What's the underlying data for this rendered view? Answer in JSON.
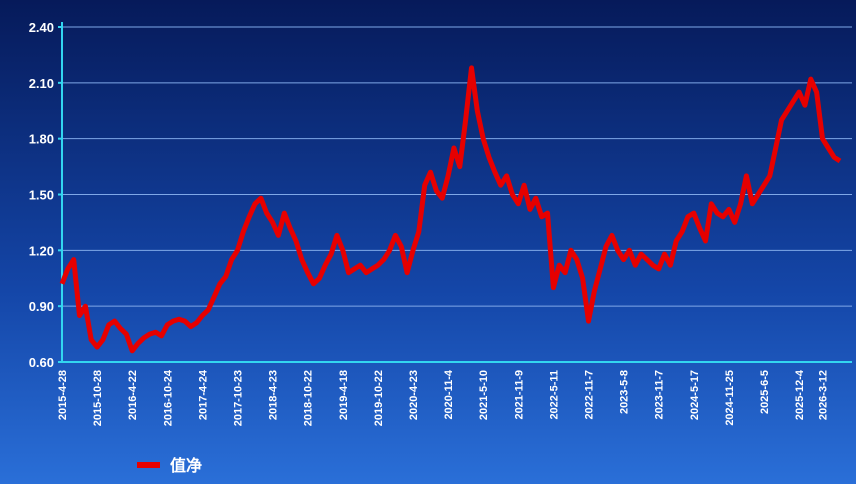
{
  "chart_data": {
    "type": "line",
    "categories": [
      "2015-4-28",
      null,
      null,
      null,
      null,
      null,
      "2015-10-28",
      null,
      null,
      null,
      null,
      null,
      "2016-4-22",
      null,
      null,
      null,
      null,
      null,
      "2016-10-24",
      null,
      null,
      null,
      null,
      null,
      "2017-4-24",
      null,
      null,
      null,
      null,
      null,
      "2017-10-23",
      null,
      null,
      null,
      null,
      null,
      "2018-4-23",
      null,
      null,
      null,
      null,
      null,
      "2018-10-22",
      null,
      null,
      null,
      null,
      null,
      "2019-4-18",
      null,
      null,
      null,
      null,
      null,
      "2019-10-22",
      null,
      null,
      null,
      null,
      null,
      "2020-4-23",
      null,
      null,
      null,
      null,
      null,
      "2020-11-4",
      null,
      null,
      null,
      null,
      null,
      "2021-5-10",
      null,
      null,
      null,
      null,
      null,
      "2021-11-9",
      null,
      null,
      null,
      null,
      null,
      "2022-5-11",
      null,
      null,
      null,
      null,
      null,
      "2022-11-7",
      null,
      null,
      null,
      null,
      null,
      "2023-5-8",
      null,
      null,
      null,
      null,
      null,
      "2023-11-7",
      null,
      null,
      null,
      null,
      null,
      "2024-5-17",
      null,
      null,
      null,
      null,
      null,
      "2024-11-25",
      null,
      null,
      null,
      null,
      null,
      "2025-6-5",
      null,
      null,
      null,
      null,
      null,
      "2025-12-4",
      null,
      null,
      null,
      "2026-3-12",
      null,
      null,
      null
    ],
    "series": [
      {
        "name": "值净",
        "color": "#e60000",
        "values": [
          1.02,
          1.1,
          1.15,
          0.85,
          0.9,
          0.72,
          0.68,
          0.72,
          0.8,
          0.82,
          0.78,
          0.75,
          0.66,
          0.7,
          0.73,
          0.75,
          0.76,
          0.74,
          0.8,
          0.82,
          0.83,
          0.82,
          0.79,
          0.81,
          0.85,
          0.88,
          0.95,
          1.02,
          1.06,
          1.15,
          1.2,
          1.3,
          1.38,
          1.45,
          1.48,
          1.4,
          1.35,
          1.28,
          1.4,
          1.32,
          1.25,
          1.15,
          1.08,
          1.02,
          1.05,
          1.12,
          1.18,
          1.28,
          1.2,
          1.08,
          1.1,
          1.12,
          1.08,
          1.1,
          1.12,
          1.15,
          1.2,
          1.28,
          1.22,
          1.08,
          1.2,
          1.3,
          1.55,
          1.62,
          1.52,
          1.48,
          1.6,
          1.75,
          1.65,
          1.9,
          2.18,
          1.95,
          1.8,
          1.7,
          1.62,
          1.55,
          1.6,
          1.5,
          1.45,
          1.55,
          1.42,
          1.48,
          1.38,
          1.4,
          1.0,
          1.12,
          1.08,
          1.2,
          1.15,
          1.05,
          0.82,
          0.98,
          1.1,
          1.22,
          1.28,
          1.2,
          1.15,
          1.2,
          1.12,
          1.18,
          1.15,
          1.12,
          1.1,
          1.18,
          1.12,
          1.25,
          1.3,
          1.38,
          1.4,
          1.32,
          1.25,
          1.45,
          1.4,
          1.38,
          1.42,
          1.35,
          1.45,
          1.6,
          1.45,
          1.5,
          1.55,
          1.6,
          1.75,
          1.9,
          1.95,
          2.0,
          2.05,
          1.98,
          2.12,
          2.05,
          1.8,
          1.75,
          1.7,
          1.68
        ]
      }
    ],
    "ylim": [
      0.6,
      2.4
    ],
    "yticks": [
      {
        "value": 0.6,
        "label": "0.60"
      },
      {
        "value": 0.9,
        "label": "0.90"
      },
      {
        "value": 1.2,
        "label": "1.20"
      },
      {
        "value": 1.5,
        "label": "1.50"
      },
      {
        "value": 1.8,
        "label": "1.80"
      },
      {
        "value": 2.1,
        "label": "2.10"
      },
      {
        "value": 2.4,
        "label": "2.40"
      }
    ],
    "grid": true,
    "legend": "bottom-left"
  }
}
